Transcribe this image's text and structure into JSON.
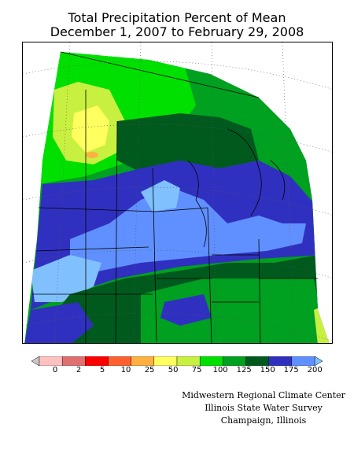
{
  "header": {
    "title_line1": "Total Precipitation Percent of Mean",
    "title_line2": "December 1, 2007 to February 29, 2008"
  },
  "legend": {
    "ticks": [
      "0",
      "2",
      "5",
      "10",
      "25",
      "50",
      "75",
      "100",
      "125",
      "150",
      "175",
      "200"
    ],
    "colors": [
      "#c8c8c8",
      "#ffc0c0",
      "#e07070",
      "#ff0000",
      "#ff6030",
      "#ffb040",
      "#ffff60",
      "#c8f040",
      "#00e000",
      "#00a020",
      "#005a1e",
      "#3030c0",
      "#6090ff",
      "#80c0ff"
    ],
    "low_arrow_color": "#c8c8c8",
    "high_arrow_color": "#80c0ff"
  },
  "credits": {
    "line1": "Midwestern Regional Climate Center",
    "line2": "Illinois State Water Survey",
    "line3": "Champaign, Illinois"
  },
  "map_colors": {
    "light_green": "#00e000",
    "mid_green": "#00a020",
    "dark_green": "#005a1e",
    "dark_blue": "#3030c0",
    "med_blue": "#6090ff",
    "light_blue": "#80c0ff",
    "yellow_green": "#c8f040",
    "yellow": "#ffff60",
    "orange": "#ffb040"
  }
}
